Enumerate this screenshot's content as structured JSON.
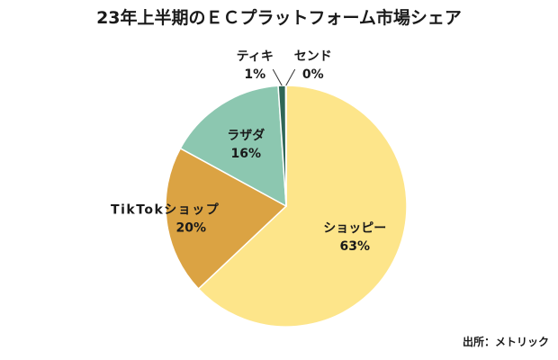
{
  "chart_data": {
    "type": "pie",
    "title": "23年上半期のＥＣプラットフォーム市場シェア",
    "slices": [
      {
        "name": "ショッピー",
        "value": 63,
        "value_label": "63%",
        "color": "#FDE58A"
      },
      {
        "name": "TikTokショップ",
        "value": 20,
        "value_label": "20%",
        "color": "#DBA343"
      },
      {
        "name": "ラザダ",
        "value": 16,
        "value_label": "16%",
        "color": "#8CC7B0"
      },
      {
        "name": "ティキ",
        "value": 1,
        "value_label": "1%",
        "color": "#2F6656"
      },
      {
        "name": "センド",
        "value": 0,
        "value_label": "0%",
        "color": "#2F6656"
      }
    ],
    "start": "12 o'clock",
    "direction": "clockwise",
    "source": "出所：メトリック"
  },
  "colors": {
    "slice_border": "#ffffff",
    "text": "#1a1a1a",
    "leader_line": "#333333"
  }
}
